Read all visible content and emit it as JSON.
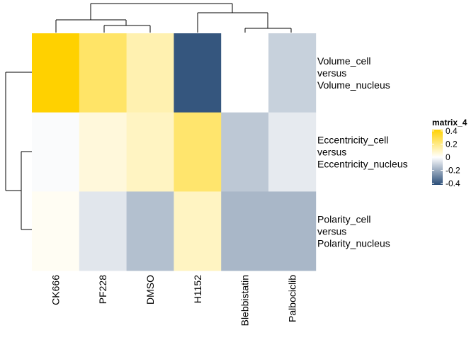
{
  "chart_data": {
    "type": "heatmap",
    "columns": [
      "CK666",
      "PF228",
      "DMSO",
      "H1152",
      "Blebbistatin",
      "Palbociclib"
    ],
    "rows": [
      [
        "Volume_cell",
        "versus",
        "Volume_nucleus"
      ],
      [
        "Eccentricity_cell",
        "versus",
        "Eccentricity_nucleus"
      ],
      [
        "Polarity_cell",
        "versus",
        "Polarity_nucleus"
      ]
    ],
    "values": [
      [
        0.42,
        0.25,
        0.13,
        -0.4,
        0.0,
        -0.11
      ],
      [
        -0.01,
        0.06,
        0.1,
        0.24,
        -0.13,
        -0.05
      ],
      [
        0.02,
        -0.06,
        -0.15,
        0.1,
        -0.17,
        -0.17
      ]
    ],
    "legend": {
      "title": "matrix_4",
      "ticks": [
        0.4,
        0.2,
        0,
        -0.2,
        -0.4
      ],
      "tick_labels": [
        "0.4",
        "0.2",
        "0",
        "-0.2",
        "-0.4"
      ],
      "range": [
        -0.42,
        0.42
      ],
      "colors": {
        "high": "#FFD100",
        "mid": "#FFFFFF",
        "low": "#2B4E78"
      }
    },
    "column_dendrogram": true,
    "row_dendrogram": true
  }
}
